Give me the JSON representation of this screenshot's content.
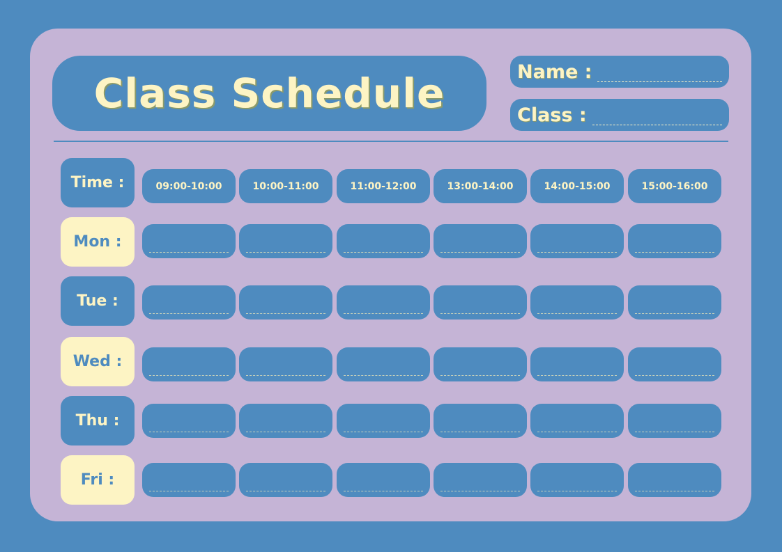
{
  "title": "Class Schedule",
  "fields": {
    "name_label": "Name :",
    "class_label": "Class :"
  },
  "time_label": "Time :",
  "time_slots": [
    "09:00-10:00",
    "10:00-11:00",
    "11:00-12:00",
    "13:00-14:00",
    "14:00-15:00",
    "15:00-16:00"
  ],
  "days": [
    "Mon :",
    "Tue :",
    "Wed :",
    "Thu :",
    "Fri :"
  ],
  "colors": {
    "background": "#4e8bbf",
    "card": "#c5b4d6",
    "accent": "#fdf4c4"
  }
}
